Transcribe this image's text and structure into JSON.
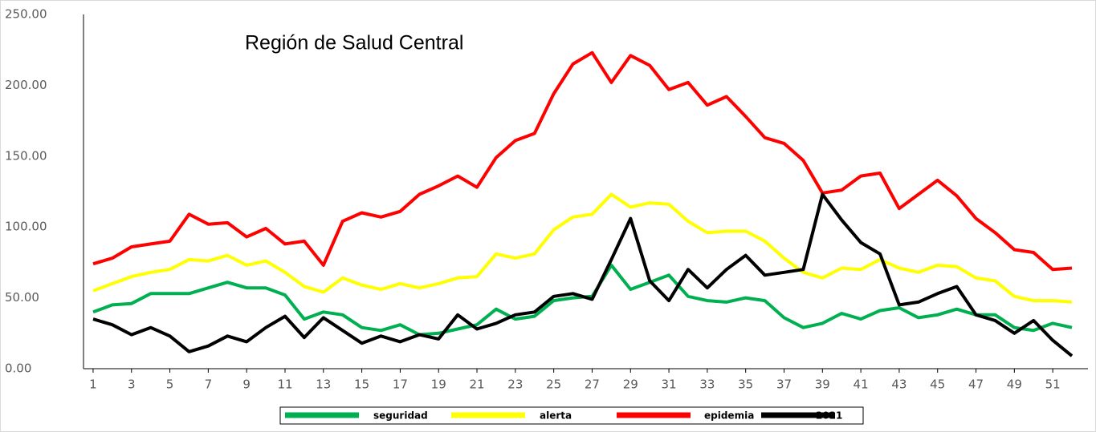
{
  "chart_data": {
    "type": "line",
    "title": "Región de Salud Central",
    "x": [
      1,
      2,
      3,
      4,
      5,
      6,
      7,
      8,
      9,
      10,
      11,
      12,
      13,
      14,
      15,
      16,
      17,
      18,
      19,
      20,
      21,
      22,
      23,
      24,
      25,
      26,
      27,
      28,
      29,
      30,
      31,
      32,
      33,
      34,
      35,
      36,
      37,
      38,
      39,
      40,
      41,
      42,
      43,
      44,
      45,
      46,
      47,
      48,
      49,
      50,
      51,
      52
    ],
    "xlim": [
      0.5,
      52.5
    ],
    "xticks": [
      1,
      3,
      5,
      7,
      9,
      11,
      13,
      15,
      17,
      19,
      21,
      23,
      25,
      27,
      29,
      31,
      33,
      35,
      37,
      39,
      41,
      43,
      45,
      47,
      49,
      51
    ],
    "ylim": [
      0,
      250
    ],
    "yticks": [
      {
        "value": 0,
        "label": "0.00"
      },
      {
        "value": 50,
        "label": "50.00"
      },
      {
        "value": 100,
        "label": "100.00"
      },
      {
        "value": 150,
        "label": "150.00"
      },
      {
        "value": 200,
        "label": "200.00"
      },
      {
        "value": 250,
        "label": "250.00"
      }
    ],
    "grid": false,
    "legend": "bottom",
    "series": [
      {
        "name": "seguridad",
        "color": "#00b050",
        "values": [
          40,
          45,
          46,
          53,
          53,
          53,
          57,
          61,
          57,
          57,
          52,
          35,
          40,
          38,
          29,
          27,
          31,
          24,
          25,
          28,
          31,
          42,
          35,
          37,
          48,
          50,
          51,
          73,
          56,
          61,
          66,
          51,
          48,
          47,
          50,
          48,
          36,
          29,
          32,
          39,
          35,
          41,
          43,
          36,
          38,
          42,
          38,
          38,
          29,
          27,
          32,
          29
        ]
      },
      {
        "name": "alerta",
        "color": "#ffff00",
        "values": [
          55,
          60,
          65,
          68,
          70,
          77,
          76,
          80,
          73,
          76,
          68,
          58,
          54,
          64,
          59,
          56,
          60,
          57,
          60,
          64,
          65,
          81,
          78,
          81,
          98,
          107,
          109,
          123,
          114,
          117,
          116,
          104,
          96,
          97,
          97,
          90,
          78,
          68,
          64,
          71,
          70,
          77,
          71,
          68,
          73,
          72,
          64,
          62,
          51,
          48,
          48,
          47
        ]
      },
      {
        "name": "epidemia",
        "color": "#ff0000",
        "values": [
          74,
          78,
          86,
          88,
          90,
          109,
          102,
          103,
          93,
          99,
          88,
          90,
          73,
          104,
          110,
          107,
          111,
          123,
          129,
          136,
          128,
          149,
          161,
          166,
          194,
          215,
          223,
          202,
          221,
          214,
          197,
          202,
          186,
          192,
          178,
          163,
          159,
          147,
          124,
          126,
          136,
          138,
          113,
          123,
          133,
          122,
          106,
          96,
          84,
          82,
          70,
          71
        ]
      },
      {
        "name": "2021",
        "color": "#000000",
        "values": [
          35,
          31,
          24,
          29,
          23,
          12,
          16,
          23,
          19,
          29,
          37,
          22,
          36,
          27,
          18,
          23,
          19,
          24,
          21,
          38,
          28,
          32,
          38,
          40,
          51,
          53,
          49,
          77,
          106,
          62,
          48,
          70,
          57,
          70,
          80,
          66,
          68,
          70,
          123,
          105,
          89,
          81,
          45,
          47,
          53,
          58,
          38,
          34,
          25,
          34,
          20,
          9
        ]
      }
    ]
  }
}
